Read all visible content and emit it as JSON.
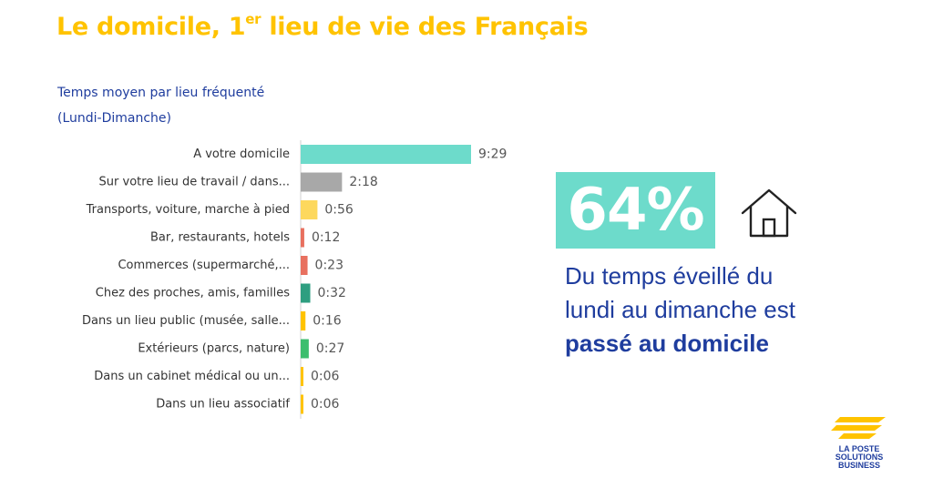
{
  "title": {
    "prefix": "Le domicile, 1",
    "sup": "er",
    "suffix": " lieu de vie des Français"
  },
  "subtitle_line1": "Temps moyen par lieu fréquenté",
  "subtitle_line2": "(Lundi-Dimanche)",
  "highlight": {
    "percent": "64%",
    "line1": "Du temps éveillé du",
    "line2": "lundi au dimanche est",
    "line3_bold": "passé au domicile",
    "icon": "house-icon"
  },
  "logo": {
    "line1": "LA POSTE",
    "line2": "SOLUTIONS",
    "line3": "BUSINESS"
  },
  "chart_data": {
    "type": "bar",
    "orientation": "horizontal",
    "categories": [
      "A votre domicile",
      "Sur votre lieu de travail / dans...",
      "Transports, voiture, marche à pied",
      "Bar, restaurants, hotels",
      "Commerces (supermarché,...",
      "Chez des proches, amis, familles",
      "Dans un lieu public (musée, salle...",
      "Extérieurs (parcs, nature)",
      "Dans un cabinet médical ou un...",
      "Dans un lieu associatif"
    ],
    "values_minutes": [
      569,
      138,
      56,
      12,
      23,
      32,
      16,
      27,
      6,
      6
    ],
    "value_labels": [
      "9:29",
      "2:18",
      "0:56",
      "0:12",
      "0:23",
      "0:32",
      "0:16",
      "0:27",
      "0:06",
      "0:06"
    ],
    "colors": [
      "#6DDBCB",
      "#A8A8A8",
      "#FDD85D",
      "#E8705F",
      "#E8705F",
      "#2E9E80",
      "#FFC300",
      "#3DBE6E",
      "#FFC300",
      "#FFC300"
    ],
    "grid": false,
    "legend": "none"
  }
}
